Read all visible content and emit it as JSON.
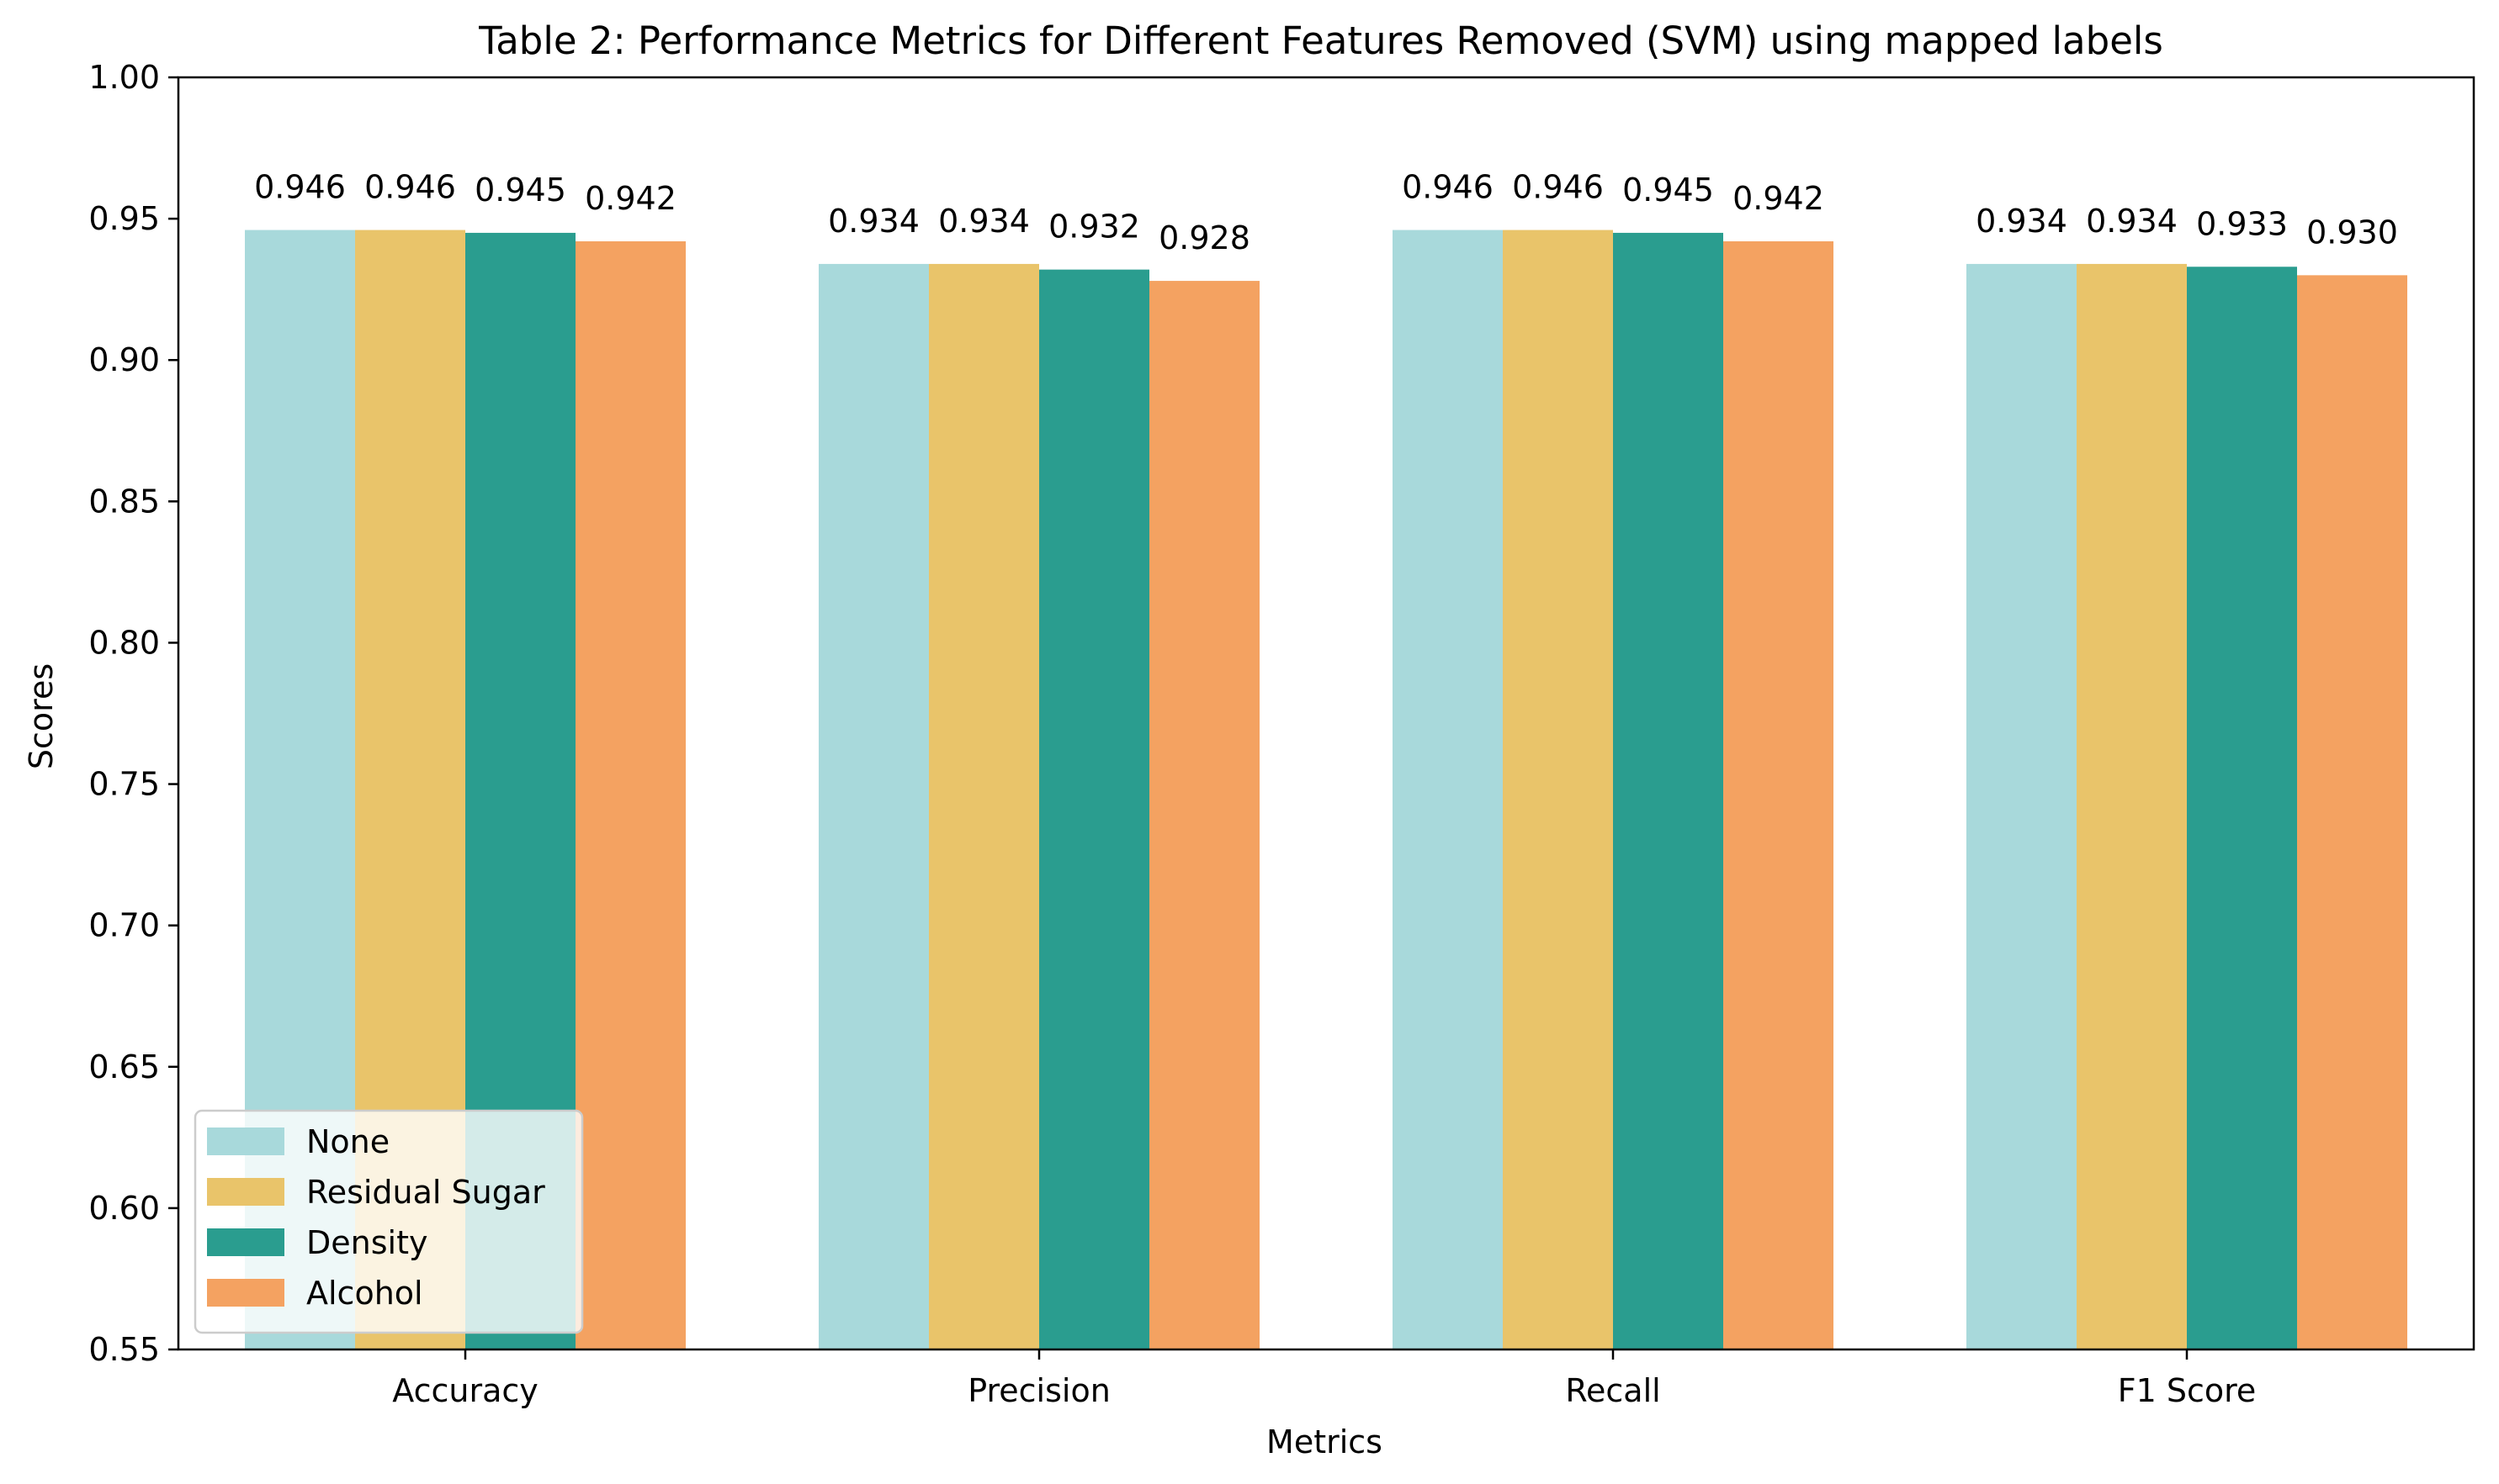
{
  "chart_data": {
    "type": "bar",
    "title": "Table 2: Performance Metrics for Different Features Removed (SVM) using mapped labels",
    "xlabel": "Metrics",
    "ylabel": "Scores",
    "ylim": [
      0.55,
      1.0
    ],
    "yticks": [
      "0.55",
      "0.60",
      "0.65",
      "0.70",
      "0.75",
      "0.80",
      "0.85",
      "0.90",
      "0.95",
      "1.00"
    ],
    "categories": [
      "Accuracy",
      "Precision",
      "Recall",
      "F1 Score"
    ],
    "series": [
      {
        "name": "None",
        "color": "#a8d9db",
        "values": [
          0.946,
          0.934,
          0.946,
          0.934
        ],
        "labels": [
          "0.946",
          "0.934",
          "0.946",
          "0.934"
        ]
      },
      {
        "name": "Residual Sugar",
        "color": "#e9c46a",
        "values": [
          0.946,
          0.934,
          0.946,
          0.934
        ],
        "labels": [
          "0.946",
          "0.934",
          "0.946",
          "0.934"
        ]
      },
      {
        "name": "Density",
        "color": "#2a9d8f",
        "values": [
          0.945,
          0.932,
          0.945,
          0.933
        ],
        "labels": [
          "0.945",
          "0.932",
          "0.945",
          "0.933"
        ]
      },
      {
        "name": "Alcohol",
        "color": "#f4a261",
        "values": [
          0.942,
          0.928,
          0.942,
          0.93
        ],
        "labels": [
          "0.942",
          "0.928",
          "0.942",
          "0.930"
        ]
      }
    ],
    "legend": {
      "position": "lower-left"
    },
    "grid": false
  }
}
